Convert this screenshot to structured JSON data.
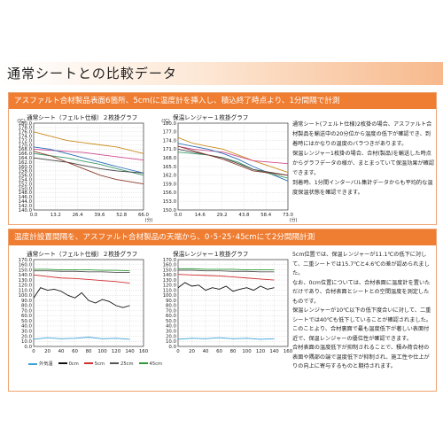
{
  "page": {
    "title": "通常シートとの比較データ"
  },
  "section1": {
    "header": "アスファルト合材製品表面6箇所、5cm(に温度計を挿入し、積込終了時点より、1分間隔で計測",
    "left_title": "通常シート（フェルト仕様）２枚掛グラフ",
    "right_title": "保温レンジャー１枚掛グラフ",
    "notes": [
      "通常シート(フェルト仕様)2枚掛の場合、アスファルト合材製品を輸送中の20分位から温度の低下が確認でき、到着時にはかなりの温度のバラつきがあります。",
      "保温レンジャー1枚掛の場合、合材(製品)を輸送した時点からグラフデータの様が、まとまっていて保温効果が確認できます。",
      "到着時、1分間インターバル集計データからも平均的な温度保温状態を確認できます。"
    ]
  },
  "section2": {
    "header": "温度計設置間隔を、アスファルト合材製品の天端から、0･5･25･45cmにて2分間隔計測",
    "left_title": "通常シート（フェルト仕様）２枚掛グラフ",
    "right_title": "保温レンジャー１枚掛グラフ",
    "legend": [
      "外気温",
      "0cm",
      "5cm",
      "25cm",
      "45cm"
    ],
    "notes": [
      "5cm位置では、保温レンジャーが11.1℃の低下に対して、二重シートでは15.7℃と4.6℃の差が認められました。",
      "なお、0cm位置については、合材表面に温度計を置いただけであり、合材表面とシートとの空間温度を測定したものです。",
      "保温レンジャーが10℃以下の低下度合いに対して、二重シートでは40℃も低下していることが確認されました。",
      "このことより、合材裏面で最も温度低下が著しい表面付近で、保温レンジャーの優位性が確認できます。",
      "合材表面の温度低下が抑制されることで、積み荷合材の表面や隅部の端で温度低下が抑制され、施工性や仕上がりの向上に寄与するものと期待されます。"
    ]
  },
  "chart_data": [
    {
      "type": "line",
      "title": "通常シート（フェルト仕様）２枚掛グラフ",
      "x_ticks": [
        "0.0",
        "13.2",
        "26.4",
        "39.6",
        "52.8",
        "66.0"
      ],
      "x_unit": "(分)",
      "y_ticks": [
        "140.0",
        "142.0",
        "144.0",
        "146.0",
        "148.0",
        "150.0",
        "152.0",
        "154.0",
        "156.0",
        "158.0",
        "160.0",
        "162.0",
        "164.0",
        "166.0",
        "168.0",
        "170.0",
        "172.0",
        "174.0",
        "176.0",
        "178.0",
        "180.0"
      ],
      "y_unit": "(℃)",
      "xlim": [
        0,
        66
      ],
      "ylim": [
        140,
        180
      ],
      "series": [
        {
          "color": "#c98a1a",
          "points": [
            [
              0,
              176
            ],
            [
              10,
              174
            ],
            [
              20,
              172
            ],
            [
              30,
              171
            ],
            [
              40,
              170
            ],
            [
              50,
              169
            ],
            [
              66,
              166
            ]
          ]
        },
        {
          "color": "#d14b8f",
          "points": [
            [
              0,
              168
            ],
            [
              10,
              167.5
            ],
            [
              20,
              167
            ],
            [
              30,
              166.5
            ],
            [
              40,
              165.5
            ],
            [
              50,
              164.5
            ],
            [
              66,
              163
            ]
          ]
        },
        {
          "color": "#2a6fb5",
          "points": [
            [
              0,
              169
            ],
            [
              10,
              168
            ],
            [
              20,
              166
            ],
            [
              30,
              164
            ],
            [
              40,
              162
            ],
            [
              50,
              160
            ],
            [
              66,
              157
            ]
          ]
        },
        {
          "color": "#3a9b6b",
          "points": [
            [
              0,
              166
            ],
            [
              10,
              165
            ],
            [
              20,
              164
            ],
            [
              30,
              162.5
            ],
            [
              40,
              161
            ],
            [
              50,
              159
            ],
            [
              66,
              156
            ]
          ]
        },
        {
          "color": "#444444",
          "points": [
            [
              0,
              164
            ],
            [
              10,
              163
            ],
            [
              20,
              162
            ],
            [
              30,
              160.5
            ],
            [
              40,
              159
            ],
            [
              50,
              158
            ],
            [
              66,
              157
            ]
          ]
        },
        {
          "color": "#8a3b2b",
          "points": [
            [
              0,
              167
            ],
            [
              10,
              165
            ],
            [
              20,
              162
            ],
            [
              30,
              159
            ],
            [
              40,
              156
            ],
            [
              50,
              154
            ],
            [
              66,
              152
            ]
          ]
        }
      ]
    },
    {
      "type": "line",
      "title": "保温レンジャー１枚掛グラフ",
      "x_ticks": [
        "0.0",
        "14.6",
        "29.2",
        "43.8",
        "58.4",
        "73.0"
      ],
      "x_unit": "(分)",
      "y_ticks": [
        "150.0",
        "153.0",
        "156.0",
        "159.0",
        "162.0",
        "165.0",
        "168.0",
        "171.0",
        "174.0",
        "177.0",
        "180.0"
      ],
      "y_unit": "(℃)",
      "xlim": [
        0,
        73
      ],
      "ylim": [
        150,
        180
      ],
      "series": [
        {
          "color": "#c98a1a",
          "points": [
            [
              0,
              175
            ],
            [
              10,
              173
            ],
            [
              20,
              172
            ],
            [
              30,
              171
            ],
            [
              40,
              169
            ],
            [
              50,
              167
            ],
            [
              73,
              163
            ]
          ]
        },
        {
          "color": "#d14b8f",
          "points": [
            [
              0,
              172
            ],
            [
              10,
              171
            ],
            [
              20,
              170.5
            ],
            [
              30,
              170
            ],
            [
              40,
              168.5
            ],
            [
              50,
              167
            ],
            [
              73,
              166
            ]
          ]
        },
        {
          "color": "#2a6fb5",
          "points": [
            [
              0,
              173
            ],
            [
              10,
              172
            ],
            [
              20,
              171
            ],
            [
              30,
              169.5
            ],
            [
              40,
              167.5
            ],
            [
              50,
              165
            ],
            [
              73,
              160
            ]
          ]
        },
        {
          "color": "#3a9b6b",
          "points": [
            [
              0,
              170
            ],
            [
              10,
              169.5
            ],
            [
              20,
              169
            ],
            [
              30,
              168
            ],
            [
              40,
              166.5
            ],
            [
              50,
              164
            ],
            [
              73,
              161
            ]
          ]
        },
        {
          "color": "#444444",
          "points": [
            [
              0,
              171
            ],
            [
              10,
              170
            ],
            [
              20,
              169
            ],
            [
              30,
              168
            ],
            [
              40,
              166
            ],
            [
              50,
              164
            ],
            [
              73,
              162
            ]
          ]
        },
        {
          "color": "#8a3b2b",
          "points": [
            [
              0,
              172
            ],
            [
              10,
              170.5
            ],
            [
              20,
              169
            ],
            [
              30,
              167.5
            ],
            [
              40,
              165.5
            ],
            [
              50,
              163.5
            ],
            [
              73,
              162
            ]
          ]
        }
      ]
    },
    {
      "type": "line",
      "title": "通常シート（フェルト仕様）２枚掛グラフ",
      "x_ticks": [
        "0",
        "20",
        "40",
        "60",
        "80",
        "100",
        "120",
        "140",
        "160"
      ],
      "y_ticks": [
        "0.0",
        "10.0",
        "20.0",
        "30.0",
        "40.0",
        "50.0",
        "60.0",
        "70.0",
        "80.0",
        "90.0",
        "100.0",
        "110.0",
        "120.0",
        "130.0",
        "140.0",
        "150.0",
        "160.0",
        "170.0"
      ],
      "xlim": [
        0,
        160
      ],
      "ylim": [
        0,
        170
      ],
      "series": [
        {
          "name": "外気温",
          "color": "#3aa0d8",
          "points": [
            [
              0,
              14
            ],
            [
              20,
              17
            ],
            [
              40,
              15
            ],
            [
              60,
              16
            ],
            [
              80,
              18
            ],
            [
              100,
              15
            ],
            [
              120,
              16
            ],
            [
              140,
              14
            ]
          ]
        },
        {
          "name": "0cm",
          "color": "#111111",
          "points": [
            [
              0,
              95
            ],
            [
              10,
              115
            ],
            [
              20,
              110
            ],
            [
              30,
              112
            ],
            [
              40,
              108
            ],
            [
              50,
              100
            ],
            [
              60,
              95
            ],
            [
              70,
              105
            ],
            [
              80,
              90
            ],
            [
              90,
              85
            ],
            [
              100,
              92
            ],
            [
              110,
              88
            ],
            [
              120,
              80
            ],
            [
              130,
              76
            ],
            [
              140,
              80
            ]
          ]
        },
        {
          "name": "5cm",
          "color": "#d03030",
          "points": [
            [
              0,
              140
            ],
            [
              20,
              137
            ],
            [
              40,
              134
            ],
            [
              60,
              133
            ],
            [
              80,
              131
            ],
            [
              100,
              129
            ],
            [
              120,
              127
            ],
            [
              140,
              124
            ]
          ]
        },
        {
          "name": "25cm",
          "color": "#555555",
          "points": [
            [
              0,
              148
            ],
            [
              20,
              148
            ],
            [
              40,
              147
            ],
            [
              60,
              147
            ],
            [
              80,
              146
            ],
            [
              100,
              146
            ],
            [
              120,
              145
            ],
            [
              140,
              145
            ]
          ]
        },
        {
          "name": "45cm",
          "color": "#2b9b3a",
          "points": [
            [
              0,
              151
            ],
            [
              20,
              151
            ],
            [
              40,
              150
            ],
            [
              60,
              150
            ],
            [
              80,
              150
            ],
            [
              100,
              149
            ],
            [
              120,
              149
            ],
            [
              140,
              148
            ]
          ]
        }
      ]
    },
    {
      "type": "line",
      "title": "保温レンジャー１枚掛グラフ",
      "x_ticks": [
        "0",
        "20",
        "40",
        "60",
        "80",
        "100",
        "120",
        "140",
        "160"
      ],
      "y_ticks": [
        "0.0",
        "10.0",
        "20.0",
        "30.0",
        "40.0",
        "50.0",
        "60.0",
        "70.0",
        "80.0",
        "90.0",
        "100.0",
        "110.0",
        "120.0",
        "130.0",
        "140.0",
        "150.0",
        "160.0",
        "170.0"
      ],
      "xlim": [
        0,
        160
      ],
      "ylim": [
        0,
        170
      ],
      "series": [
        {
          "name": "外気温",
          "color": "#3aa0d8",
          "points": [
            [
              0,
              14
            ],
            [
              20,
              16
            ],
            [
              40,
              15
            ],
            [
              60,
              17
            ],
            [
              80,
              15
            ],
            [
              100,
              16
            ],
            [
              120,
              14
            ],
            [
              140,
              15
            ]
          ]
        },
        {
          "name": "0cm",
          "color": "#111111",
          "points": [
            [
              0,
              115
            ],
            [
              10,
              125
            ],
            [
              20,
              118
            ],
            [
              30,
              120
            ],
            [
              40,
              110
            ],
            [
              50,
              115
            ],
            [
              60,
              112
            ],
            [
              70,
              118
            ],
            [
              80,
              108
            ],
            [
              90,
              112
            ],
            [
              100,
              115
            ],
            [
              110,
              110
            ],
            [
              120,
              118
            ],
            [
              130,
              112
            ],
            [
              140,
              115
            ]
          ]
        },
        {
          "name": "5cm",
          "color": "#d03030",
          "points": [
            [
              0,
              141
            ],
            [
              20,
              140
            ],
            [
              40,
              139
            ],
            [
              60,
              138
            ],
            [
              80,
              136
            ],
            [
              100,
              134
            ],
            [
              120,
              132
            ],
            [
              140,
              130
            ]
          ]
        },
        {
          "name": "25cm",
          "color": "#555555",
          "points": [
            [
              0,
              149
            ],
            [
              20,
              149
            ],
            [
              40,
              148
            ],
            [
              60,
              148
            ],
            [
              80,
              147
            ],
            [
              100,
              147
            ],
            [
              120,
              146
            ],
            [
              140,
              146
            ]
          ]
        },
        {
          "name": "45cm",
          "color": "#2b9b3a",
          "points": [
            [
              0,
              152
            ],
            [
              20,
              152
            ],
            [
              40,
              151
            ],
            [
              60,
              151
            ],
            [
              80,
              151
            ],
            [
              100,
              150
            ],
            [
              120,
              150
            ],
            [
              140,
              150
            ]
          ]
        }
      ]
    }
  ]
}
